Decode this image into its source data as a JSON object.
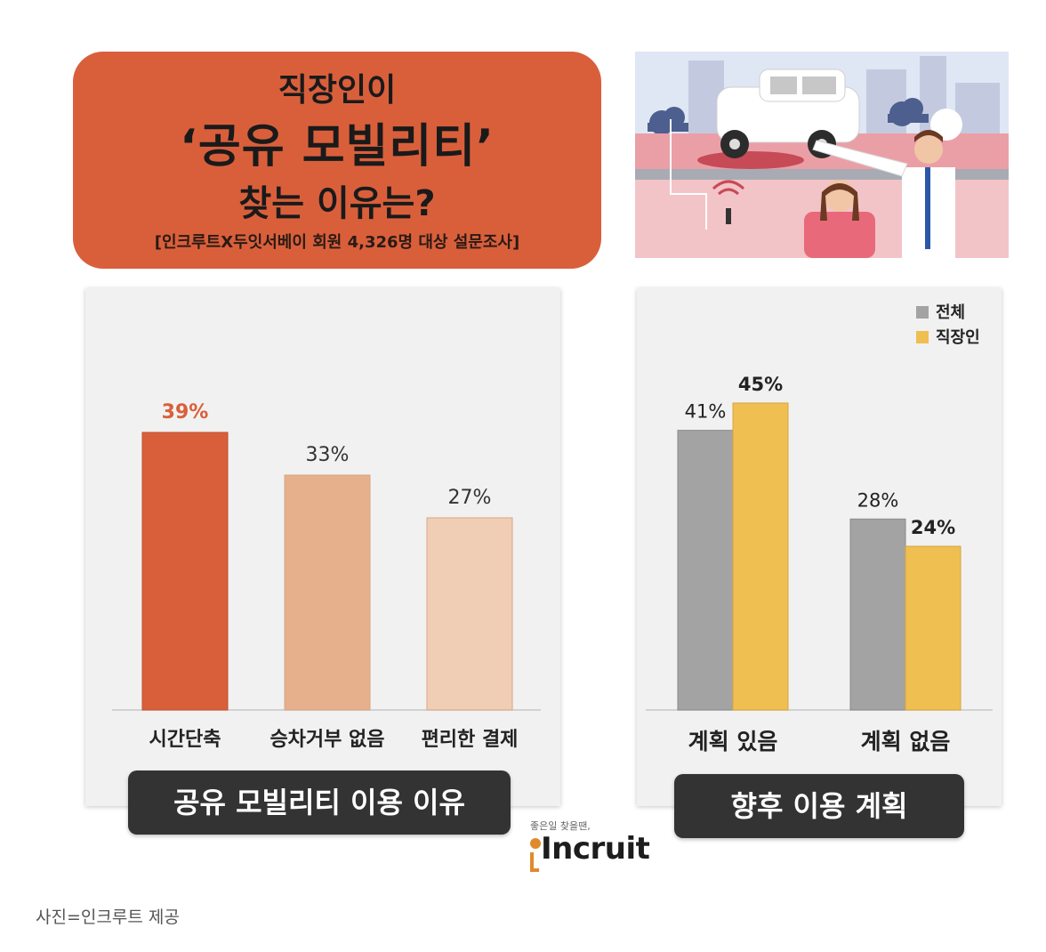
{
  "header": {
    "line1": "직장인이",
    "line2": "‘공유 모빌리티’",
    "line3": "찾는 이유는?",
    "source": "[인크루트X두잇서베이 회원 4,326명 대상 설문조사]"
  },
  "colors": {
    "title_box": "#d95f3b",
    "bar_left_1": "#d95f3b",
    "bar_left_2": "#e6b08c",
    "bar_left_3": "#f0ceb5",
    "series_all": "#a3a3a3",
    "series_office": "#efbf52",
    "pill": "#333333"
  },
  "chart_data": [
    {
      "type": "bar",
      "title": "공유 모빌리티 이용 이유",
      "categories": [
        "시간단축",
        "승차거부 없음",
        "편리한 결제"
      ],
      "values": [
        39,
        33,
        27
      ],
      "value_labels": [
        "39%",
        "33%",
        "27%"
      ],
      "ylim": [
        0,
        45
      ],
      "grid": false
    },
    {
      "type": "bar",
      "title": "향후 이용 계획",
      "categories": [
        "계획 있음",
        "계획 없음"
      ],
      "series": [
        {
          "name": "전체",
          "values": [
            41,
            28
          ],
          "value_labels": [
            "41%",
            "28%"
          ]
        },
        {
          "name": "직장인",
          "values": [
            45,
            24
          ],
          "value_labels": [
            "45%",
            "24%"
          ]
        }
      ],
      "legend_position": "top-right",
      "ylim": [
        0,
        45
      ],
      "grid": false
    }
  ],
  "logo": {
    "tagline": "좋은일 찾을땐,",
    "wordmark": "Incruit"
  },
  "caption": "사진=인크루트 제공"
}
